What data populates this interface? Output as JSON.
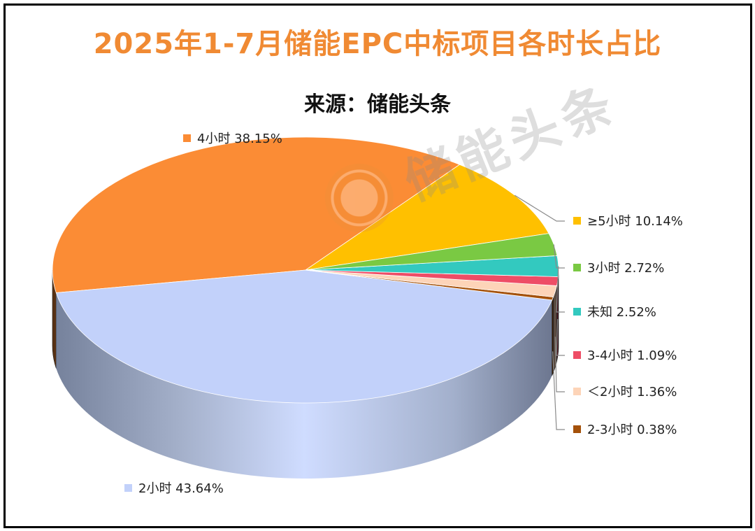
{
  "title": "2025年1-7月储能EPC中标项目各时长占比",
  "subtitle": "来源：储能头条",
  "watermark": "储能头条",
  "chart_data": {
    "type": "pie",
    "style": "3d",
    "start_angle_deg": 16,
    "legend_placement": "inline-labels",
    "slices": [
      {
        "label": "≥5小时",
        "value": 10.14,
        "display": "≥5小时 10.14%",
        "color": "#ffc000"
      },
      {
        "label": "4小时",
        "value": 38.15,
        "display": "4小时 38.15%",
        "color": "#fb8c35"
      },
      {
        "label": "2小时",
        "value": 43.64,
        "display": "2小时 43.64%",
        "color": "#c2d1fa"
      },
      {
        "label": "2-3小时",
        "value": 0.38,
        "display": "2-3小时 0.38%",
        "color": "#a4510a"
      },
      {
        "label": "＜2小时",
        "value": 1.36,
        "display": "＜2小时 1.36%",
        "color": "#fdd4b8"
      },
      {
        "label": "3-4小时",
        "value": 1.09,
        "display": "3-4小时 1.09%",
        "color": "#ee4d66"
      },
      {
        "label": "未知",
        "value": 2.52,
        "display": "未知 2.52%",
        "color": "#33c9bf"
      },
      {
        "label": "3小时",
        "value": 2.72,
        "display": "3小时 2.72%",
        "color": "#7ac943"
      }
    ]
  }
}
